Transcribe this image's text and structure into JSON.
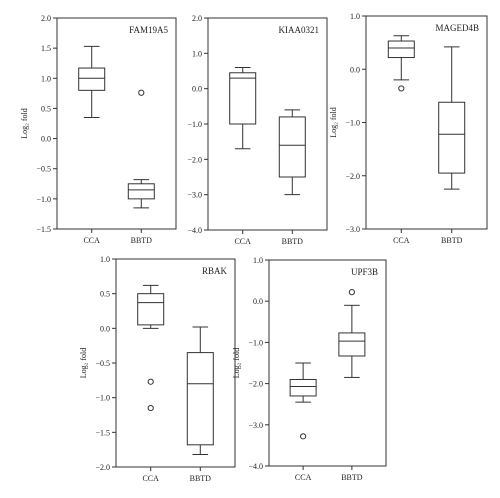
{
  "chart_data": [
    {
      "type": "boxplot",
      "title": "FAM19A5",
      "ylabel": "Log₂ fold",
      "categories": [
        "CCA",
        "BBTD"
      ],
      "ylim": [
        -1.5,
        2.0
      ],
      "yticks": [
        "2.0",
        "1.5",
        "1.0",
        "0.5",
        "0.0",
        "−0.5",
        "−1.0",
        "−1.5"
      ],
      "yticks_values": [
        2.0,
        1.5,
        1.0,
        0.5,
        0.0,
        -0.5,
        -1.0,
        -1.5
      ],
      "boxes": [
        {
          "category": "CCA",
          "whisker_low": 0.35,
          "q1": 0.8,
          "median": 1.0,
          "q3": 1.17,
          "whisker_high": 1.53,
          "outliers": []
        },
        {
          "category": "BBTD",
          "whisker_low": -1.15,
          "q1": -1.0,
          "median": -0.85,
          "q3": -0.75,
          "whisker_high": -0.68,
          "outliers": [
            0.76
          ]
        }
      ]
    },
    {
      "type": "boxplot",
      "title": "KIAA0321",
      "ylabel": "",
      "categories": [
        "CCA",
        "BBTD"
      ],
      "ylim": [
        -4.0,
        2.0
      ],
      "yticks": [
        "2.0",
        "1.0",
        "0.0",
        "−1.0",
        "−2.0",
        "−3.0",
        "−4.0"
      ],
      "yticks_values": [
        2.0,
        1.0,
        0.0,
        -1.0,
        -2.0,
        -3.0,
        -4.0
      ],
      "boxes": [
        {
          "category": "CCA",
          "whisker_low": -1.7,
          "q1": -1.0,
          "median": 0.3,
          "q3": 0.45,
          "whisker_high": 0.6,
          "outliers": []
        },
        {
          "category": "BBTD",
          "whisker_low": -3.0,
          "q1": -2.5,
          "median": -1.6,
          "q3": -0.8,
          "whisker_high": -0.6,
          "outliers": []
        }
      ]
    },
    {
      "type": "boxplot",
      "title": "MAGED4B",
      "ylabel": "Log₂ fold",
      "categories": [
        "CCA",
        "BBTD"
      ],
      "ylim": [
        -3.0,
        1.0
      ],
      "yticks": [
        "1.0",
        "0.0",
        "−1.0",
        "−2.0",
        "−3.0"
      ],
      "yticks_values": [
        1.0,
        0.0,
        -1.0,
        -2.0,
        -3.0
      ],
      "boxes": [
        {
          "category": "CCA",
          "whisker_low": -0.2,
          "q1": 0.22,
          "median": 0.4,
          "q3": 0.53,
          "whisker_high": 0.63,
          "outliers": [
            -0.36
          ]
        },
        {
          "category": "BBTD",
          "whisker_low": -2.25,
          "q1": -1.95,
          "median": -1.22,
          "q3": -0.62,
          "whisker_high": 0.42,
          "outliers": []
        }
      ]
    },
    {
      "type": "boxplot",
      "title": "RBAK",
      "ylabel": "Log₂ fold",
      "categories": [
        "CCA",
        "BBTD"
      ],
      "ylim": [
        -2.0,
        1.0
      ],
      "yticks": [
        "1.0",
        "0.5",
        "0.0",
        "−0.5",
        "−1.0",
        "−1.5",
        "−2.0"
      ],
      "yticks_values": [
        1.0,
        0.5,
        0.0,
        -0.5,
        -1.0,
        -1.5,
        -2.0
      ],
      "boxes": [
        {
          "category": "CCA",
          "whisker_low": 0.0,
          "q1": 0.05,
          "median": 0.37,
          "q3": 0.5,
          "whisker_high": 0.62,
          "outliers": [
            -0.77,
            -1.15
          ]
        },
        {
          "category": "BBTD",
          "whisker_low": -1.82,
          "q1": -1.68,
          "median": -0.8,
          "q3": -0.35,
          "whisker_high": 0.02,
          "outliers": []
        }
      ]
    },
    {
      "type": "boxplot",
      "title": "UPF3B",
      "ylabel": "Log₂ fold",
      "categories": [
        "CCA",
        "BBTD"
      ],
      "ylim": [
        -4.0,
        1.0
      ],
      "yticks": [
        "1.0",
        "0.0",
        "−1.0",
        "−2.0",
        "−3.0",
        "−4.0"
      ],
      "yticks_values": [
        1.0,
        0.0,
        -1.0,
        -2.0,
        -3.0,
        -4.0
      ],
      "boxes": [
        {
          "category": "CCA",
          "whisker_low": -2.45,
          "q1": -2.3,
          "median": -2.07,
          "q3": -1.9,
          "whisker_high": -1.5,
          "outliers": [
            -3.28
          ]
        },
        {
          "category": "BBTD",
          "whisker_low": -1.85,
          "q1": -1.33,
          "median": -0.97,
          "q3": -0.77,
          "whisker_high": -0.1,
          "outliers": [
            0.22
          ]
        }
      ]
    }
  ]
}
